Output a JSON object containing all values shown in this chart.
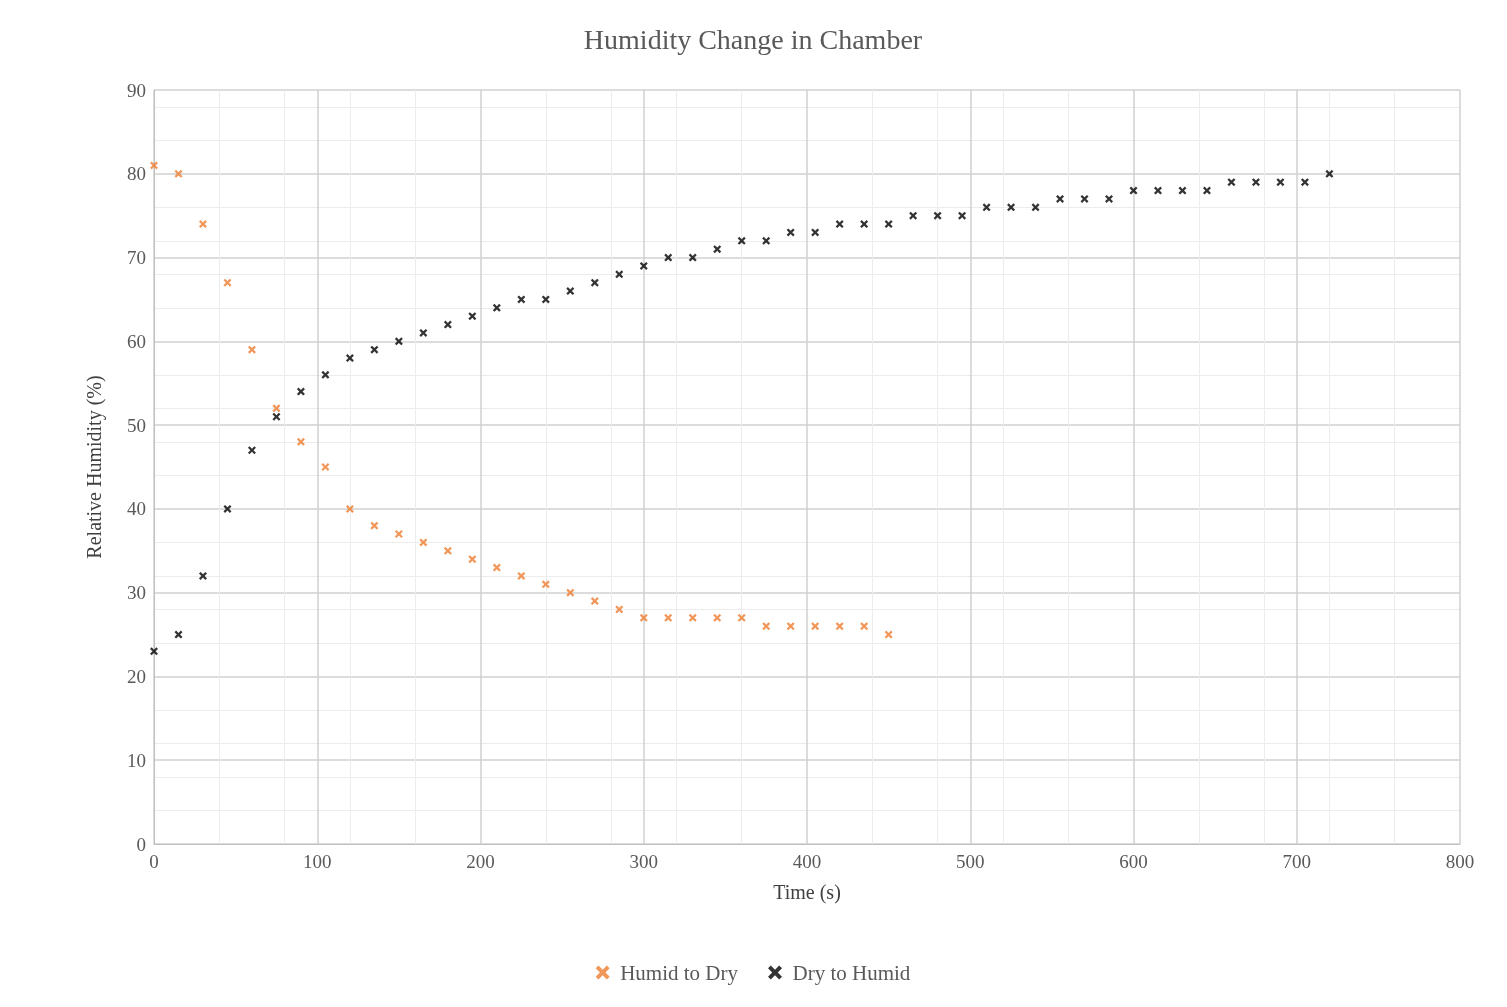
{
  "chart_data": {
    "type": "scatter",
    "title": "Humidity Change in Chamber",
    "xlabel": "Time (s)",
    "ylabel": "Relative Humidity (%)",
    "xlim": [
      0,
      800
    ],
    "xticks": [
      0,
      100,
      200,
      300,
      400,
      500,
      600,
      700,
      800
    ],
    "ylim": [
      0,
      90
    ],
    "yticks": [
      0,
      10,
      20,
      30,
      40,
      50,
      60,
      70,
      80,
      90
    ],
    "grid": true,
    "legend": "bottom",
    "marker": "cross",
    "series": [
      {
        "name": "Humid to Dry",
        "color": "#ed7d31",
        "x": [
          0,
          15,
          30,
          45,
          60,
          75,
          90,
          105,
          120,
          135,
          150,
          165,
          180,
          195,
          210,
          225,
          240,
          255,
          270,
          285,
          300,
          315,
          330,
          345,
          360,
          375,
          390,
          405,
          420,
          435,
          450
        ],
        "values": [
          81,
          80,
          74,
          67,
          59,
          52,
          48,
          45,
          40,
          38,
          37,
          36,
          35,
          34,
          33,
          32,
          31,
          30,
          29,
          28,
          27,
          27,
          27,
          27,
          27,
          26,
          26,
          26,
          26,
          26,
          25
        ]
      },
      {
        "name": "Dry to Humid",
        "color": "#000000",
        "x": [
          0,
          15,
          30,
          45,
          60,
          75,
          90,
          105,
          120,
          135,
          150,
          165,
          180,
          195,
          210,
          225,
          240,
          255,
          270,
          285,
          300,
          315,
          330,
          345,
          360,
          375,
          390,
          405,
          420,
          435,
          450,
          465,
          480,
          495,
          510,
          525,
          540,
          555,
          570,
          585,
          600,
          615,
          630,
          645,
          660,
          675,
          690,
          705,
          720
        ],
        "values": [
          23,
          25,
          32,
          40,
          47,
          51,
          54,
          56,
          58,
          59,
          60,
          61,
          62,
          63,
          64,
          65,
          65,
          66,
          67,
          68,
          69,
          70,
          70,
          71,
          72,
          72,
          73,
          73,
          74,
          74,
          74,
          75,
          75,
          75,
          76,
          76,
          76,
          77,
          77,
          77,
          78,
          78,
          78,
          78,
          79,
          79,
          79,
          79,
          80
        ]
      }
    ]
  }
}
